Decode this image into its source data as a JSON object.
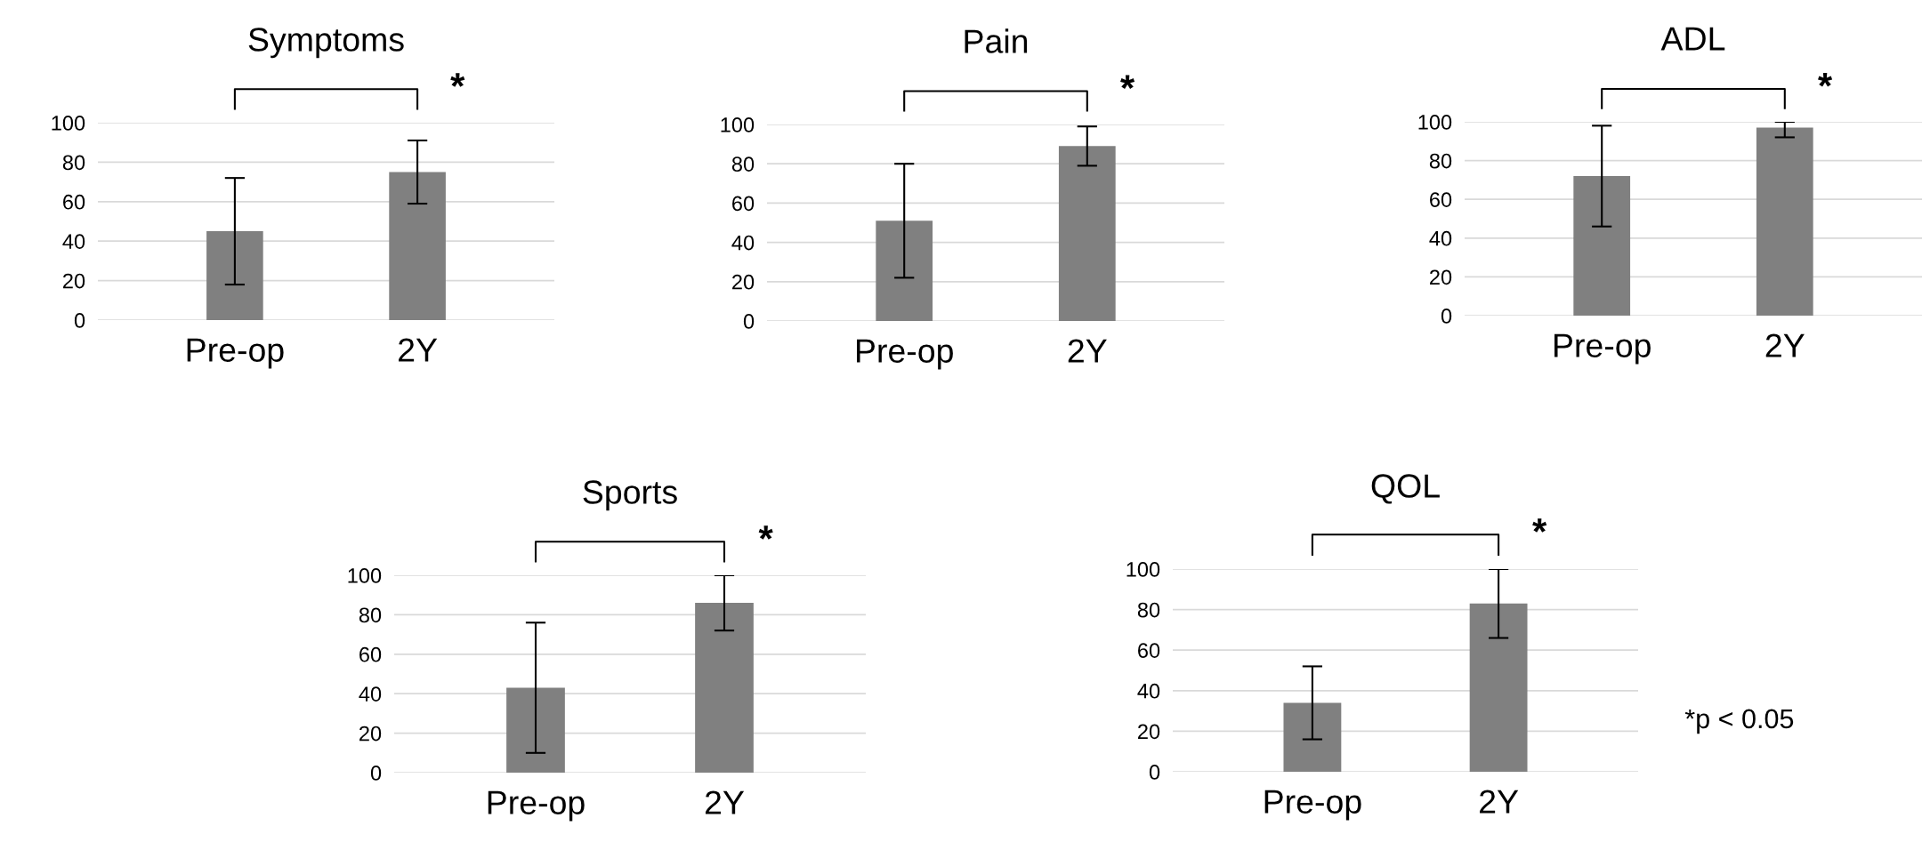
{
  "chart_data": [
    {
      "type": "bar",
      "title": "Symptoms",
      "categories": [
        "Pre-op",
        "2Y"
      ],
      "values": [
        45,
        75
      ],
      "errors": [
        27,
        16
      ],
      "color": "#808080",
      "ylim": [
        0,
        100
      ],
      "yticks": [
        0,
        20,
        40,
        60,
        80,
        100
      ],
      "grid": "y",
      "annotations": [
        "*"
      ]
    },
    {
      "type": "bar",
      "title": "Pain",
      "categories": [
        "Pre-op",
        "2Y"
      ],
      "values": [
        51,
        89
      ],
      "errors": [
        29,
        10
      ],
      "color": "#808080",
      "ylim": [
        0,
        100
      ],
      "yticks": [
        0,
        20,
        40,
        60,
        80,
        100
      ],
      "grid": "y",
      "annotations": [
        "*"
      ]
    },
    {
      "type": "bar",
      "title": "ADL",
      "categories": [
        "Pre-op",
        "2Y"
      ],
      "values": [
        72,
        97
      ],
      "errors": [
        26,
        [
          92,
          100
        ]
      ],
      "color": "#808080",
      "ylim": [
        0,
        100
      ],
      "yticks": [
        0,
        20,
        40,
        60,
        80,
        100
      ],
      "grid": "y",
      "annotations": [
        "*"
      ]
    },
    {
      "type": "bar",
      "title": "Sports",
      "categories": [
        "Pre-op",
        "2Y"
      ],
      "values": [
        43,
        86
      ],
      "errors": [
        33,
        14
      ],
      "color": "#808080",
      "ylim": [
        0,
        100
      ],
      "yticks": [
        0,
        20,
        40,
        60,
        80,
        100
      ],
      "grid": "y",
      "annotations": [
        "*"
      ]
    },
    {
      "type": "bar",
      "title": "QOL",
      "categories": [
        "Pre-op",
        "2Y"
      ],
      "values": [
        34,
        83
      ],
      "errors": [
        18,
        17
      ],
      "color": "#808080",
      "ylim": [
        0,
        100
      ],
      "yticks": [
        0,
        20,
        40,
        60,
        80,
        100
      ],
      "grid": "y",
      "annotations": [
        "*",
        "*p < 0.05"
      ]
    }
  ]
}
